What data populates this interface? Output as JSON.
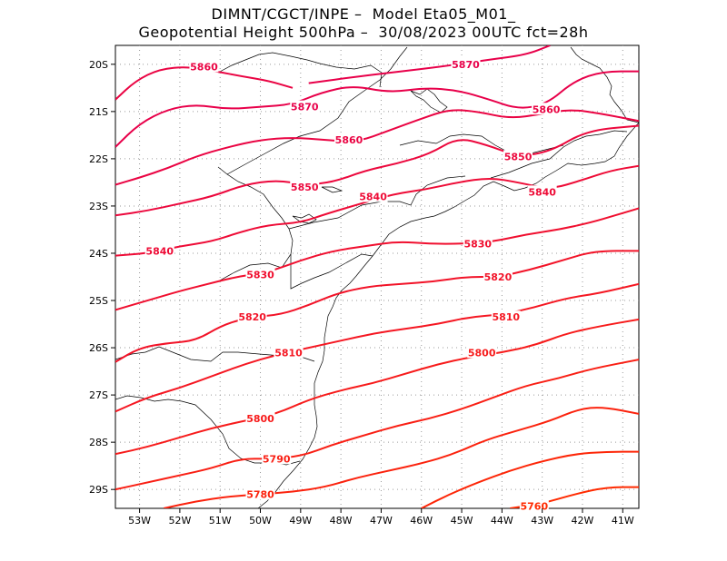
{
  "title": {
    "line1": "DIMNT/CGCT/INPE –  Model Eta05_M01_",
    "line2": "Geopotential Height 500hPa –  30/08/2023 00UTC fct=28h"
  },
  "axes": {
    "lon_labels": [
      "53W",
      "52W",
      "51W",
      "50W",
      "49W",
      "48W",
      "47W",
      "46W",
      "45W",
      "44W",
      "43W",
      "42W",
      "41W"
    ],
    "lon_values": [
      -53,
      -52,
      -51,
      -50,
      -49,
      -48,
      -47,
      -46,
      -45,
      -44,
      -43,
      -42,
      -41
    ],
    "lat_labels": [
      "20S",
      "21S",
      "22S",
      "23S",
      "24S",
      "25S",
      "26S",
      "27S",
      "28S",
      "29S"
    ],
    "lat_values": [
      -20,
      -21,
      -22,
      -23,
      -24,
      -25,
      -26,
      -27,
      -28,
      -29
    ],
    "lon_range": [
      -53.6,
      -40.6
    ],
    "lat_range": [
      -29.4,
      -19.6
    ],
    "grid": "dotted"
  },
  "colors": {
    "high": "#e8004a",
    "low": "#ff2a00",
    "grid": "#9a9a9a",
    "coast": "#000000"
  },
  "chart_data": {
    "type": "contour",
    "variable": "Geopotential Height 500hPa",
    "units": "gpm",
    "contours": [
      {
        "level": 5870,
        "labels": [
          {
            "text": "5870",
            "lon": -44.9,
            "lat": -20.0
          }
        ],
        "points": [
          [
            -48.8,
            -20.4
          ],
          [
            -47.5,
            -20.25
          ],
          [
            -46.5,
            -20.15
          ],
          [
            -45.5,
            -20.05
          ],
          [
            -44.3,
            -19.9
          ],
          [
            -43.4,
            -19.8
          ],
          [
            -42.8,
            -19.6
          ]
        ]
      },
      {
        "level": 5860,
        "labels": [
          {
            "text": "5860",
            "lon": -51.4,
            "lat": -20.05
          }
        ],
        "points": [
          [
            -53.6,
            -20.75
          ],
          [
            -53.1,
            -20.35
          ],
          [
            -52.5,
            -20.1
          ],
          [
            -51.8,
            -20.05
          ],
          [
            -51.1,
            -20.15
          ],
          [
            -50.5,
            -20.25
          ],
          [
            -49.8,
            -20.35
          ],
          [
            -49.2,
            -20.5
          ]
        ]
      },
      {
        "level": 5870,
        "labels": [
          {
            "text": "5870",
            "lon": -48.9,
            "lat": -20.9
          }
        ],
        "points": [
          [
            -53.6,
            -21.75
          ],
          [
            -53.0,
            -21.25
          ],
          [
            -52.3,
            -20.95
          ],
          [
            -51.6,
            -20.85
          ],
          [
            -50.8,
            -20.95
          ],
          [
            -50.0,
            -20.9
          ],
          [
            -49.2,
            -20.85
          ],
          [
            -48.5,
            -20.6
          ],
          [
            -47.7,
            -20.45
          ],
          [
            -46.8,
            -20.6
          ],
          [
            -45.9,
            -20.5
          ],
          [
            -45.1,
            -20.55
          ],
          [
            -44.3,
            -20.75
          ],
          [
            -43.6,
            -20.95
          ],
          [
            -42.9,
            -20.85
          ],
          [
            -42.2,
            -20.35
          ],
          [
            -41.5,
            -20.15
          ],
          [
            -40.6,
            -20.15
          ]
        ]
      },
      {
        "level": 5860,
        "labels": [
          {
            "text": "5860",
            "lon": -47.8,
            "lat": -21.6
          },
          {
            "text": "5860",
            "lon": -42.9,
            "lat": -20.95
          }
        ],
        "points": [
          [
            -53.6,
            -22.55
          ],
          [
            -53.0,
            -22.4
          ],
          [
            -52.3,
            -22.2
          ],
          [
            -51.6,
            -21.95
          ],
          [
            -50.8,
            -21.75
          ],
          [
            -50.0,
            -21.6
          ],
          [
            -49.2,
            -21.55
          ],
          [
            -48.4,
            -21.6
          ],
          [
            -47.6,
            -21.65
          ],
          [
            -46.8,
            -21.4
          ],
          [
            -46.0,
            -21.15
          ],
          [
            -45.3,
            -20.95
          ],
          [
            -44.6,
            -21.0
          ],
          [
            -43.8,
            -21.15
          ],
          [
            -43.0,
            -21.05
          ],
          [
            -42.3,
            -20.95
          ],
          [
            -41.5,
            -21.05
          ],
          [
            -40.6,
            -21.2
          ]
        ]
      },
      {
        "level": 5850,
        "labels": [
          {
            "text": "5850",
            "lon": -48.9,
            "lat": -22.6
          },
          {
            "text": "5850",
            "lon": -43.6,
            "lat": -21.95
          }
        ],
        "points": [
          [
            -53.6,
            -23.2
          ],
          [
            -52.8,
            -23.1
          ],
          [
            -52.0,
            -22.95
          ],
          [
            -51.2,
            -22.8
          ],
          [
            -50.4,
            -22.55
          ],
          [
            -49.6,
            -22.45
          ],
          [
            -48.9,
            -22.55
          ],
          [
            -48.2,
            -22.5
          ],
          [
            -47.4,
            -22.25
          ],
          [
            -46.6,
            -22.1
          ],
          [
            -45.8,
            -21.9
          ],
          [
            -45.1,
            -21.55
          ],
          [
            -44.4,
            -21.7
          ],
          [
            -43.6,
            -21.95
          ],
          [
            -42.8,
            -21.85
          ],
          [
            -41.9,
            -21.4
          ],
          [
            -40.6,
            -21.3
          ]
        ]
      },
      {
        "level": 5840,
        "labels": [
          {
            "text": "5840",
            "lon": -52.5,
            "lat": -23.95
          },
          {
            "text": "5840",
            "lon": -47.2,
            "lat": -22.8
          },
          {
            "text": "5840",
            "lon": -43.0,
            "lat": -22.7
          }
        ],
        "points": [
          [
            -53.6,
            -24.05
          ],
          [
            -52.8,
            -24.0
          ],
          [
            -52.0,
            -23.85
          ],
          [
            -51.2,
            -23.75
          ],
          [
            -50.5,
            -23.55
          ],
          [
            -49.8,
            -23.4
          ],
          [
            -49.0,
            -23.35
          ],
          [
            -48.3,
            -23.15
          ],
          [
            -47.5,
            -22.95
          ],
          [
            -46.7,
            -22.75
          ],
          [
            -45.9,
            -22.65
          ],
          [
            -45.1,
            -22.5
          ],
          [
            -44.3,
            -22.4
          ],
          [
            -43.6,
            -22.5
          ],
          [
            -42.8,
            -22.65
          ],
          [
            -42.0,
            -22.45
          ],
          [
            -41.3,
            -22.25
          ],
          [
            -40.6,
            -22.15
          ]
        ]
      },
      {
        "level": 5830,
        "labels": [
          {
            "text": "5830",
            "lon": -50.0,
            "lat": -24.45
          },
          {
            "text": "5830",
            "lon": -44.6,
            "lat": -23.8
          }
        ],
        "points": [
          [
            -53.6,
            -25.2
          ],
          [
            -52.8,
            -25.0
          ],
          [
            -52.0,
            -24.8
          ],
          [
            -51.3,
            -24.65
          ],
          [
            -50.6,
            -24.5
          ],
          [
            -49.8,
            -24.4
          ],
          [
            -49.0,
            -24.15
          ],
          [
            -48.2,
            -23.95
          ],
          [
            -47.4,
            -23.85
          ],
          [
            -46.6,
            -23.75
          ],
          [
            -45.8,
            -23.8
          ],
          [
            -45.0,
            -23.8
          ],
          [
            -44.2,
            -23.75
          ],
          [
            -43.4,
            -23.6
          ],
          [
            -42.6,
            -23.5
          ],
          [
            -41.8,
            -23.35
          ],
          [
            -41.2,
            -23.2
          ],
          [
            -40.6,
            -23.05
          ]
        ]
      },
      {
        "level": 5820,
        "labels": [
          {
            "text": "5820",
            "lon": -50.2,
            "lat": -25.35
          },
          {
            "text": "5820",
            "lon": -44.1,
            "lat": -24.5
          }
        ],
        "points": [
          [
            -53.6,
            -26.3
          ],
          [
            -53.0,
            -26.0
          ],
          [
            -52.3,
            -25.9
          ],
          [
            -51.6,
            -25.85
          ],
          [
            -50.9,
            -25.5
          ],
          [
            -50.2,
            -25.35
          ],
          [
            -49.5,
            -25.3
          ],
          [
            -48.8,
            -25.1
          ],
          [
            -48.1,
            -24.85
          ],
          [
            -47.3,
            -24.7
          ],
          [
            -46.5,
            -24.65
          ],
          [
            -45.7,
            -24.6
          ],
          [
            -44.9,
            -24.5
          ],
          [
            -44.1,
            -24.5
          ],
          [
            -43.3,
            -24.35
          ],
          [
            -42.5,
            -24.15
          ],
          [
            -41.7,
            -23.95
          ],
          [
            -40.6,
            -23.95
          ]
        ]
      },
      {
        "level": 5810,
        "labels": [
          {
            "text": "5810",
            "lon": -49.3,
            "lat": -26.1
          },
          {
            "text": "5810",
            "lon": -43.9,
            "lat": -25.35
          }
        ],
        "points": [
          [
            -53.6,
            -27.35
          ],
          [
            -52.8,
            -27.05
          ],
          [
            -52.0,
            -26.85
          ],
          [
            -51.2,
            -26.6
          ],
          [
            -50.4,
            -26.35
          ],
          [
            -49.6,
            -26.15
          ],
          [
            -48.8,
            -26.0
          ],
          [
            -48.0,
            -25.85
          ],
          [
            -47.2,
            -25.7
          ],
          [
            -46.4,
            -25.6
          ],
          [
            -45.6,
            -25.5
          ],
          [
            -44.8,
            -25.35
          ],
          [
            -44.0,
            -25.3
          ],
          [
            -43.2,
            -25.15
          ],
          [
            -42.4,
            -24.95
          ],
          [
            -41.6,
            -24.85
          ],
          [
            -40.6,
            -24.65
          ]
        ]
      },
      {
        "level": 5800,
        "labels": [
          {
            "text": "5800",
            "lon": -50.0,
            "lat": -27.5
          },
          {
            "text": "5800",
            "lon": -44.5,
            "lat": -26.1
          }
        ],
        "points": [
          [
            -53.6,
            -28.25
          ],
          [
            -52.8,
            -28.1
          ],
          [
            -52.0,
            -27.9
          ],
          [
            -51.2,
            -27.7
          ],
          [
            -50.4,
            -27.55
          ],
          [
            -49.6,
            -27.4
          ],
          [
            -48.8,
            -27.1
          ],
          [
            -48.0,
            -26.9
          ],
          [
            -47.2,
            -26.75
          ],
          [
            -46.4,
            -26.55
          ],
          [
            -45.6,
            -26.35
          ],
          [
            -44.8,
            -26.2
          ],
          [
            -44.0,
            -26.1
          ],
          [
            -43.2,
            -25.95
          ],
          [
            -42.4,
            -25.7
          ],
          [
            -41.6,
            -25.55
          ],
          [
            -40.6,
            -25.4
          ]
        ]
      },
      {
        "level": 5790,
        "labels": [
          {
            "text": "5790",
            "lon": -49.6,
            "lat": -28.35
          }
        ],
        "points": [
          [
            -53.6,
            -29.0
          ],
          [
            -52.8,
            -28.85
          ],
          [
            -52.0,
            -28.7
          ],
          [
            -51.2,
            -28.55
          ],
          [
            -50.5,
            -28.35
          ],
          [
            -49.8,
            -28.35
          ],
          [
            -49.0,
            -28.3
          ],
          [
            -48.2,
            -28.05
          ],
          [
            -47.4,
            -27.85
          ],
          [
            -46.6,
            -27.65
          ],
          [
            -45.8,
            -27.5
          ],
          [
            -45.0,
            -27.3
          ],
          [
            -44.2,
            -27.05
          ],
          [
            -43.4,
            -26.8
          ],
          [
            -42.6,
            -26.65
          ],
          [
            -41.8,
            -26.45
          ],
          [
            -40.6,
            -26.25
          ]
        ]
      },
      {
        "level": 5780,
        "labels": [
          {
            "text": "5780",
            "lon": -50.0,
            "lat": -29.1
          }
        ],
        "points": [
          [
            -52.4,
            -29.4
          ],
          [
            -51.6,
            -29.25
          ],
          [
            -50.8,
            -29.15
          ],
          [
            -50.0,
            -29.1
          ],
          [
            -49.2,
            -29.05
          ],
          [
            -48.4,
            -28.95
          ],
          [
            -47.6,
            -28.75
          ],
          [
            -46.8,
            -28.6
          ],
          [
            -46.0,
            -28.45
          ],
          [
            -45.2,
            -28.25
          ],
          [
            -44.4,
            -27.95
          ],
          [
            -43.6,
            -27.75
          ],
          [
            -42.8,
            -27.55
          ],
          [
            -42.1,
            -27.3
          ],
          [
            -41.5,
            -27.25
          ],
          [
            -40.6,
            -27.4
          ]
        ]
      },
      {
        "level": 5770,
        "labels": [],
        "points": [
          [
            -46.0,
            -29.4
          ],
          [
            -45.3,
            -29.1
          ],
          [
            -44.6,
            -28.85
          ],
          [
            -43.8,
            -28.6
          ],
          [
            -43.0,
            -28.4
          ],
          [
            -42.2,
            -28.25
          ],
          [
            -41.4,
            -28.2
          ],
          [
            -40.6,
            -28.2
          ]
        ]
      },
      {
        "level": 5760,
        "labels": [
          {
            "text": "5760",
            "lon": -43.2,
            "lat": -29.35
          }
        ],
        "points": [
          [
            -43.8,
            -29.4
          ],
          [
            -43.0,
            -29.3
          ],
          [
            -42.2,
            -29.1
          ],
          [
            -41.4,
            -28.95
          ],
          [
            -40.6,
            -28.95
          ]
        ]
      }
    ]
  }
}
